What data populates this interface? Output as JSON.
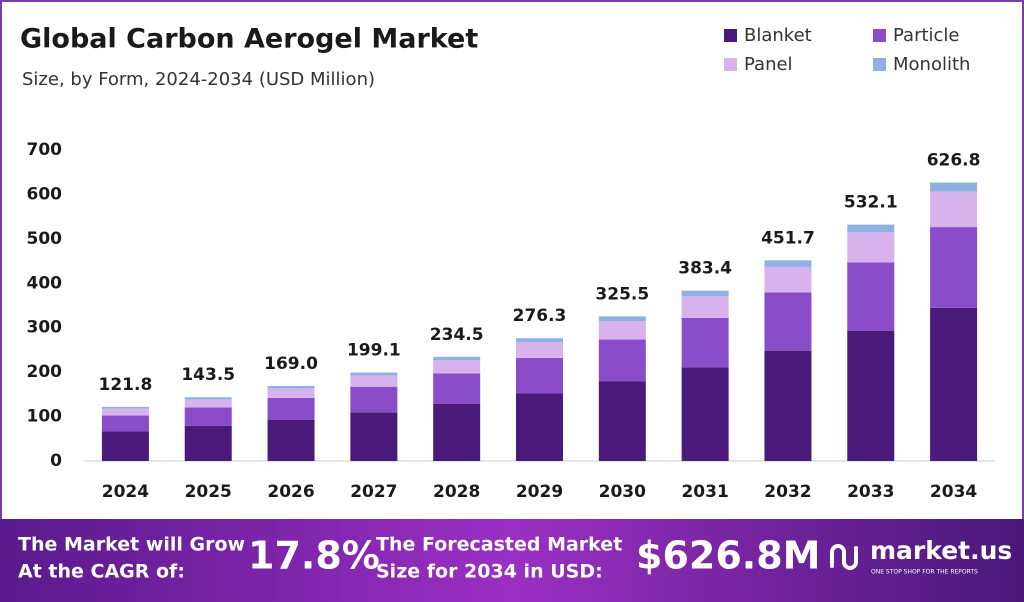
{
  "chart_data": {
    "type": "stacked_bar",
    "title": "Global Carbon Aerogel Market",
    "subtitle": "Size, by Form, 2024-2034 (USD Million)",
    "categories": [
      "2024",
      "2025",
      "2026",
      "2027",
      "2028",
      "2029",
      "2030",
      "2031",
      "2032",
      "2033",
      "2034"
    ],
    "series": [
      {
        "name": "Blanket",
        "color": "#4a1a7a",
        "values": [
          67.0,
          78.9,
          93.0,
          109.5,
          129.0,
          152.0,
          179.0,
          210.9,
          248.4,
          292.7,
          344.7
        ]
      },
      {
        "name": "Particle",
        "color": "#8a4cc8",
        "values": [
          35.3,
          41.6,
          49.0,
          57.7,
          68.0,
          80.1,
          94.4,
          111.2,
          131.0,
          154.3,
          181.8
        ]
      },
      {
        "name": "Panel",
        "color": "#d8b2ec",
        "values": [
          15.5,
          18.2,
          21.5,
          25.3,
          29.8,
          35.1,
          41.3,
          48.7,
          57.4,
          67.6,
          79.6
        ]
      },
      {
        "name": "Monolith",
        "color": "#8fb0e0",
        "values": [
          4.0,
          4.8,
          5.5,
          6.6,
          7.7,
          9.1,
          10.8,
          12.6,
          14.9,
          17.5,
          20.7
        ]
      }
    ],
    "totals": [
      121.8,
      143.5,
      169.0,
      199.1,
      234.5,
      276.3,
      325.5,
      383.4,
      451.7,
      532.1,
      626.8
    ],
    "total_labels": [
      "121.8",
      "143.5",
      "169.0",
      "199.1",
      "234.5",
      "276.3",
      "325.5",
      "383.4",
      "451.7",
      "532.1",
      "626.8"
    ],
    "ylim": [
      0,
      700
    ],
    "yticks": [
      0,
      100,
      200,
      300,
      400,
      500,
      600,
      700
    ],
    "grid": false,
    "legend": "top-right"
  },
  "footer": {
    "cagr_text_1": "The Market will Grow",
    "cagr_text_2": "At the CAGR of:",
    "cagr": "17.8%",
    "forecast_text_1": "The Forecasted Market",
    "forecast_text_2": "Size for 2034 in USD:",
    "forecast": "$626.8M",
    "brand": "market.us",
    "tagline": "ONE STOP SHOP FOR THE REPORTS"
  }
}
